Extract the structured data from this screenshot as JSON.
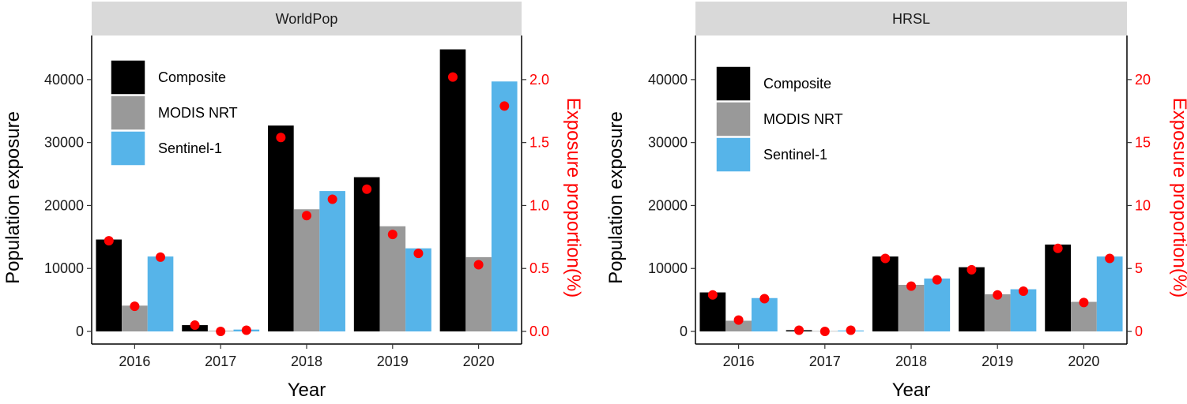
{
  "chart_data": [
    {
      "type": "bar",
      "panel_title": "WorldPop",
      "xlabel": "Year",
      "ylabel": "Population exposure",
      "y2label": "Exposure proportion(%)",
      "categories": [
        "2016",
        "2017",
        "2018",
        "2019",
        "2020"
      ],
      "ylim": [
        -2000,
        47000
      ],
      "y2lim": [
        -0.1,
        2.35
      ],
      "yticks": [
        "0",
        "10000",
        "20000",
        "30000",
        "40000"
      ],
      "y2ticks": [
        "0.0",
        "0.5",
        "1.0",
        "1.5",
        "2.0"
      ],
      "legend_position": "top-left",
      "series": [
        {
          "name": "Composite",
          "color": "#000000",
          "values": [
            14600,
            1000,
            32700,
            24500,
            44800
          ]
        },
        {
          "name": "MODIS NRT",
          "color": "#999999",
          "values": [
            4100,
            100,
            19400,
            16700,
            11800
          ]
        },
        {
          "name": "Sentinel-1",
          "color": "#56B4E9",
          "values": [
            11900,
            300,
            22300,
            13200,
            39700
          ]
        }
      ],
      "proportion_series": [
        {
          "name": "Composite",
          "values": [
            0.72,
            0.05,
            1.54,
            1.13,
            2.02
          ]
        },
        {
          "name": "MODIS NRT",
          "values": [
            0.2,
            0.0,
            0.92,
            0.77,
            0.53
          ]
        },
        {
          "name": "Sentinel-1",
          "values": [
            0.59,
            0.01,
            1.05,
            0.62,
            1.79
          ]
        }
      ],
      "point_color": "#FF0000"
    },
    {
      "type": "bar",
      "panel_title": "HRSL",
      "xlabel": "Year",
      "ylabel": "Population exposure",
      "y2label": "Exposure proportion(%)",
      "categories": [
        "2016",
        "2017",
        "2018",
        "2019",
        "2020"
      ],
      "ylim": [
        -2000,
        47000
      ],
      "y2lim": [
        -1,
        23.5
      ],
      "yticks": [
        "0",
        "10000",
        "20000",
        "30000",
        "40000"
      ],
      "y2ticks": [
        "0",
        "5",
        "10",
        "15",
        "20"
      ],
      "legend_position": "top-left",
      "series": [
        {
          "name": "Composite",
          "color": "#000000",
          "values": [
            6200,
            200,
            11900,
            10200,
            13800
          ]
        },
        {
          "name": "MODIS NRT",
          "color": "#999999",
          "values": [
            1700,
            50,
            7400,
            5900,
            4700
          ]
        },
        {
          "name": "Sentinel-1",
          "color": "#56B4E9",
          "values": [
            5300,
            150,
            8400,
            6700,
            11900
          ]
        }
      ],
      "proportion_series": [
        {
          "name": "Composite",
          "values": [
            2.9,
            0.1,
            5.8,
            4.9,
            6.6
          ]
        },
        {
          "name": "MODIS NRT",
          "values": [
            0.9,
            0.0,
            3.6,
            2.9,
            2.3
          ]
        },
        {
          "name": "Sentinel-1",
          "values": [
            2.6,
            0.1,
            4.1,
            3.2,
            5.8
          ]
        }
      ],
      "point_color": "#FF0000"
    }
  ]
}
